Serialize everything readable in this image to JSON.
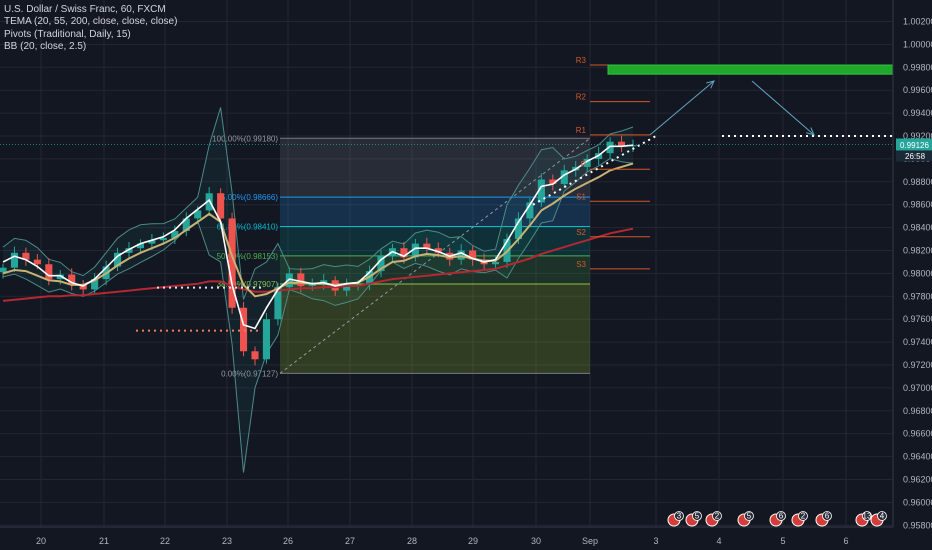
{
  "legend": {
    "title": "U.S. Dollar / Swiss Franc, 60, FXCM",
    "tema": "TEMA (20, 55, 200, close, close, close)",
    "pivots": "Pivots (Traditional, Daily, 15)",
    "bb": "BB (20, close, 2.5)"
  },
  "colors": {
    "background": "#131722",
    "grid": "#242733",
    "candle_up": "#26a69a",
    "candle_down": "#ef5350",
    "tema_fast": "#ffffff",
    "tema_mid": "#c8b273",
    "tema_slow": "#b22833",
    "bb": "#4d8a86",
    "pivot": "#d5572b",
    "target_box": "#1fa82c",
    "arrow": "#5fa4c2",
    "price_tag": "#26a69a"
  },
  "price_axis": {
    "labels": [
      "1.00200",
      "1.00000",
      "0.99800",
      "0.99600",
      "0.99400",
      "0.99200",
      "0.99000",
      "0.98800",
      "0.98600",
      "0.98400",
      "0.98200",
      "0.98000",
      "0.97800",
      "0.97600",
      "0.97400",
      "0.97200",
      "0.97000",
      "0.96800",
      "0.96600",
      "0.96400",
      "0.96200",
      "0.96000",
      "0.95800"
    ],
    "current_price": "0.99126",
    "countdown": "26:58"
  },
  "time_axis": {
    "labels": [
      "20",
      "21",
      "22",
      "23",
      "26",
      "27",
      "28",
      "29",
      "30",
      "Sep",
      "3",
      "4",
      "5",
      "6"
    ]
  },
  "fib_labels": {
    "l100": "100.00%(0.99180)",
    "l75": "75.00%(0.98666)",
    "l618": "61.80%(0.98410)",
    "l50": "50.00%(0.98153)",
    "l382": "38.20%(0.97907)",
    "l0": "0.00%(0.97127)"
  },
  "pivot_labels": [
    "R3",
    "R2",
    "R1",
    "P",
    "S1",
    "S2",
    "S3"
  ],
  "event_badges": [
    "3",
    "5",
    "2",
    "5",
    "6",
    "2",
    "6",
    "13",
    "4"
  ],
  "chart_data": {
    "type": "line",
    "title": "U.S. Dollar / Swiss Franc, 60, FXCM",
    "ylim": [
      0.957,
      1.003
    ],
    "x_ticks": [
      "20",
      "21",
      "22",
      "23",
      "26",
      "27",
      "28",
      "29",
      "30",
      "Sep",
      "3",
      "4",
      "5",
      "6"
    ],
    "y_ticks": [
      1.002,
      1.0,
      0.998,
      0.996,
      0.994,
      0.992,
      0.99,
      0.988,
      0.986,
      0.984,
      0.982,
      0.98,
      0.978,
      0.976,
      0.974,
      0.972,
      0.97,
      0.968,
      0.966,
      0.964,
      0.962,
      0.96,
      0.958
    ],
    "current_price": 0.99126,
    "fibonacci": [
      {
        "level": "100.00%",
        "price": 0.9918
      },
      {
        "level": "75.00%",
        "price": 0.98666
      },
      {
        "level": "61.80%",
        "price": 0.9841
      },
      {
        "level": "50.00%",
        "price": 0.98153
      },
      {
        "level": "38.20%",
        "price": 0.97907
      },
      {
        "level": "0.00%",
        "price": 0.97127
      }
    ],
    "pivots": [
      {
        "name": "R3",
        "price": 0.9982
      },
      {
        "name": "R2",
        "price": 0.995
      },
      {
        "name": "R1",
        "price": 0.9921
      },
      {
        "name": "P",
        "price": 0.9891
      },
      {
        "name": "S1",
        "price": 0.9863
      },
      {
        "name": "S2",
        "price": 0.9832
      },
      {
        "name": "S3",
        "price": 0.9804
      }
    ],
    "target_zone": [
      0.9974,
      0.9982
    ],
    "series": [
      {
        "name": "close",
        "values": [
          0.9805,
          0.9818,
          0.9812,
          0.9808,
          0.9795,
          0.9799,
          0.979,
          0.9786,
          0.9795,
          0.9806,
          0.9818,
          0.9822,
          0.9826,
          0.9829,
          0.9831,
          0.9837,
          0.9848,
          0.9855,
          0.987,
          0.9848,
          0.977,
          0.9732,
          0.9725,
          0.976,
          0.9788,
          0.98,
          0.9789,
          0.9791,
          0.9794,
          0.9785,
          0.979,
          0.979,
          0.9802,
          0.9815,
          0.9822,
          0.9814,
          0.9826,
          0.9822,
          0.9818,
          0.9812,
          0.982,
          0.9812,
          0.9808,
          0.981,
          0.983,
          0.9848,
          0.9862,
          0.9882,
          0.9878,
          0.989,
          0.9893,
          0.99,
          0.9905,
          0.9915,
          0.9911,
          0.9912
        ]
      },
      {
        "name": "TEMA 20",
        "values": [
          0.981,
          0.9815,
          0.9812,
          0.9806,
          0.9798,
          0.9798,
          0.9792,
          0.9789,
          0.9795,
          0.9805,
          0.9815,
          0.9821,
          0.9826,
          0.9829,
          0.9832,
          0.9838,
          0.9848,
          0.9856,
          0.9864,
          0.9845,
          0.979,
          0.9755,
          0.9752,
          0.977,
          0.9786,
          0.9795,
          0.9793,
          0.9791,
          0.9792,
          0.9789,
          0.9791,
          0.9792,
          0.9801,
          0.9812,
          0.9819,
          0.9815,
          0.9822,
          0.9822,
          0.9819,
          0.9815,
          0.9818,
          0.9813,
          0.981,
          0.9812,
          0.9828,
          0.9845,
          0.986,
          0.9876,
          0.9878,
          0.9886,
          0.9891,
          0.9898,
          0.9903,
          0.9911,
          0.9911,
          0.9912
        ]
      },
      {
        "name": "TEMA 55",
        "values": [
          0.98,
          0.9803,
          0.9802,
          0.9798,
          0.9794,
          0.9793,
          0.979,
          0.979,
          0.9794,
          0.98,
          0.9807,
          0.9813,
          0.9818,
          0.9822,
          0.9826,
          0.9831,
          0.9838,
          0.9845,
          0.9852,
          0.9845,
          0.9815,
          0.979,
          0.978,
          0.9782,
          0.9787,
          0.9792,
          0.9792,
          0.9791,
          0.9791,
          0.979,
          0.9791,
          0.9792,
          0.9797,
          0.9804,
          0.981,
          0.9811,
          0.9815,
          0.9817,
          0.9816,
          0.9814,
          0.9815,
          0.9813,
          0.9811,
          0.9811,
          0.9819,
          0.983,
          0.9842,
          0.9855,
          0.9861,
          0.9868,
          0.9874,
          0.9879,
          0.9884,
          0.989,
          0.9893,
          0.9896
        ]
      },
      {
        "name": "TEMA 200",
        "values": [
          0.9776,
          0.9777,
          0.9778,
          0.9779,
          0.978,
          0.978,
          0.9781,
          0.9781,
          0.9782,
          0.9783,
          0.9784,
          0.9785,
          0.9786,
          0.9787,
          0.9788,
          0.9789,
          0.979,
          0.9791,
          0.9793,
          0.9793,
          0.9789,
          0.9786,
          0.9784,
          0.9784,
          0.9785,
          0.9786,
          0.9787,
          0.9787,
          0.9788,
          0.9788,
          0.9789,
          0.9789,
          0.9791,
          0.9793,
          0.9795,
          0.9796,
          0.9797,
          0.9798,
          0.9799,
          0.98,
          0.9801,
          0.9802,
          0.9803,
          0.9804,
          0.9807,
          0.981,
          0.9813,
          0.9817,
          0.982,
          0.9823,
          0.9826,
          0.9829,
          0.9832,
          0.9835,
          0.9837,
          0.9839
        ]
      }
    ]
  }
}
